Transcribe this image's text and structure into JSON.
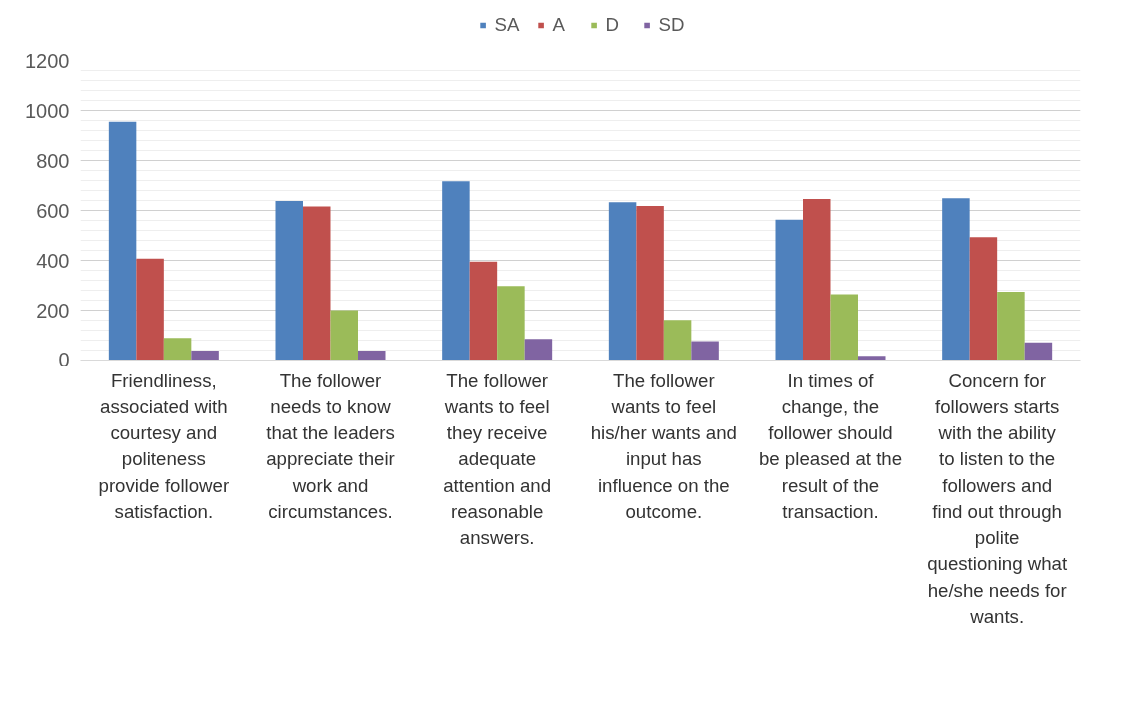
{
  "chart_data": {
    "type": "bar",
    "categories": [
      "Friendliness, associated with courtesy and politeness provide follower satisfaction.",
      "The follower needs to know that the leaders appreciate their work and circumstances.",
      "The follower wants to feel they receive adequate attention and reasonable answers.",
      "The follower wants to feel his/her wants and input has influence on the outcome.",
      "In times of change, the follower should be pleased at the result of the transaction.",
      "Concern for followers starts with the ability to listen to the followers and find out through polite questioning what he/she needs for wants."
    ],
    "series": [
      {
        "name": "SA",
        "color": "#4f81bd",
        "values": [
          955,
          638,
          717,
          633,
          563,
          649
        ]
      },
      {
        "name": "A",
        "color": "#c0504d",
        "values": [
          407,
          616,
          395,
          618,
          646,
          493
        ]
      },
      {
        "name": "D",
        "color": "#9bbb59",
        "values": [
          89,
          200,
          297,
          161,
          264,
          274
        ]
      },
      {
        "name": "SD",
        "color": "#8064a2",
        "values": [
          38,
          38,
          85,
          76,
          17,
          71
        ]
      }
    ],
    "ylim": [
      0,
      1200
    ],
    "yticks": [
      0,
      200,
      400,
      600,
      800,
      1000,
      1200
    ],
    "grid": "y",
    "legend": "top"
  }
}
